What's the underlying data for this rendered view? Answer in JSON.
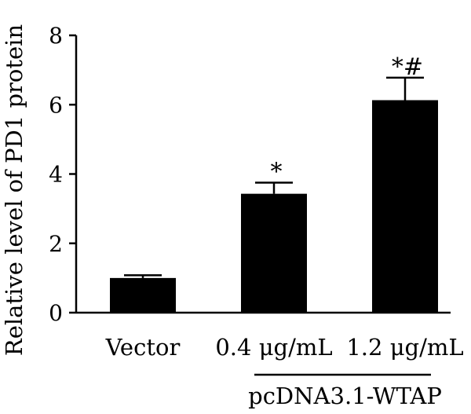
{
  "chart_data": {
    "type": "bar",
    "categories": [
      "Vector",
      "0.4 μg/mL",
      "1.2 μg/mL"
    ],
    "values": [
      1.0,
      3.43,
      6.13
    ],
    "errors": [
      0.08,
      0.32,
      0.65
    ],
    "significance": [
      "",
      "*",
      "*#"
    ],
    "ylabel": "Relative level of PD1 protein",
    "ylim": [
      0,
      8
    ],
    "yticks": [
      0,
      2,
      4,
      6,
      8
    ],
    "group_label": "pcDNA3.1-WTAP",
    "group_span": [
      "0.4 μg/mL",
      "1.2 μg/mL"
    ],
    "bar_color": "#000000",
    "grid": false,
    "legend": "none"
  }
}
